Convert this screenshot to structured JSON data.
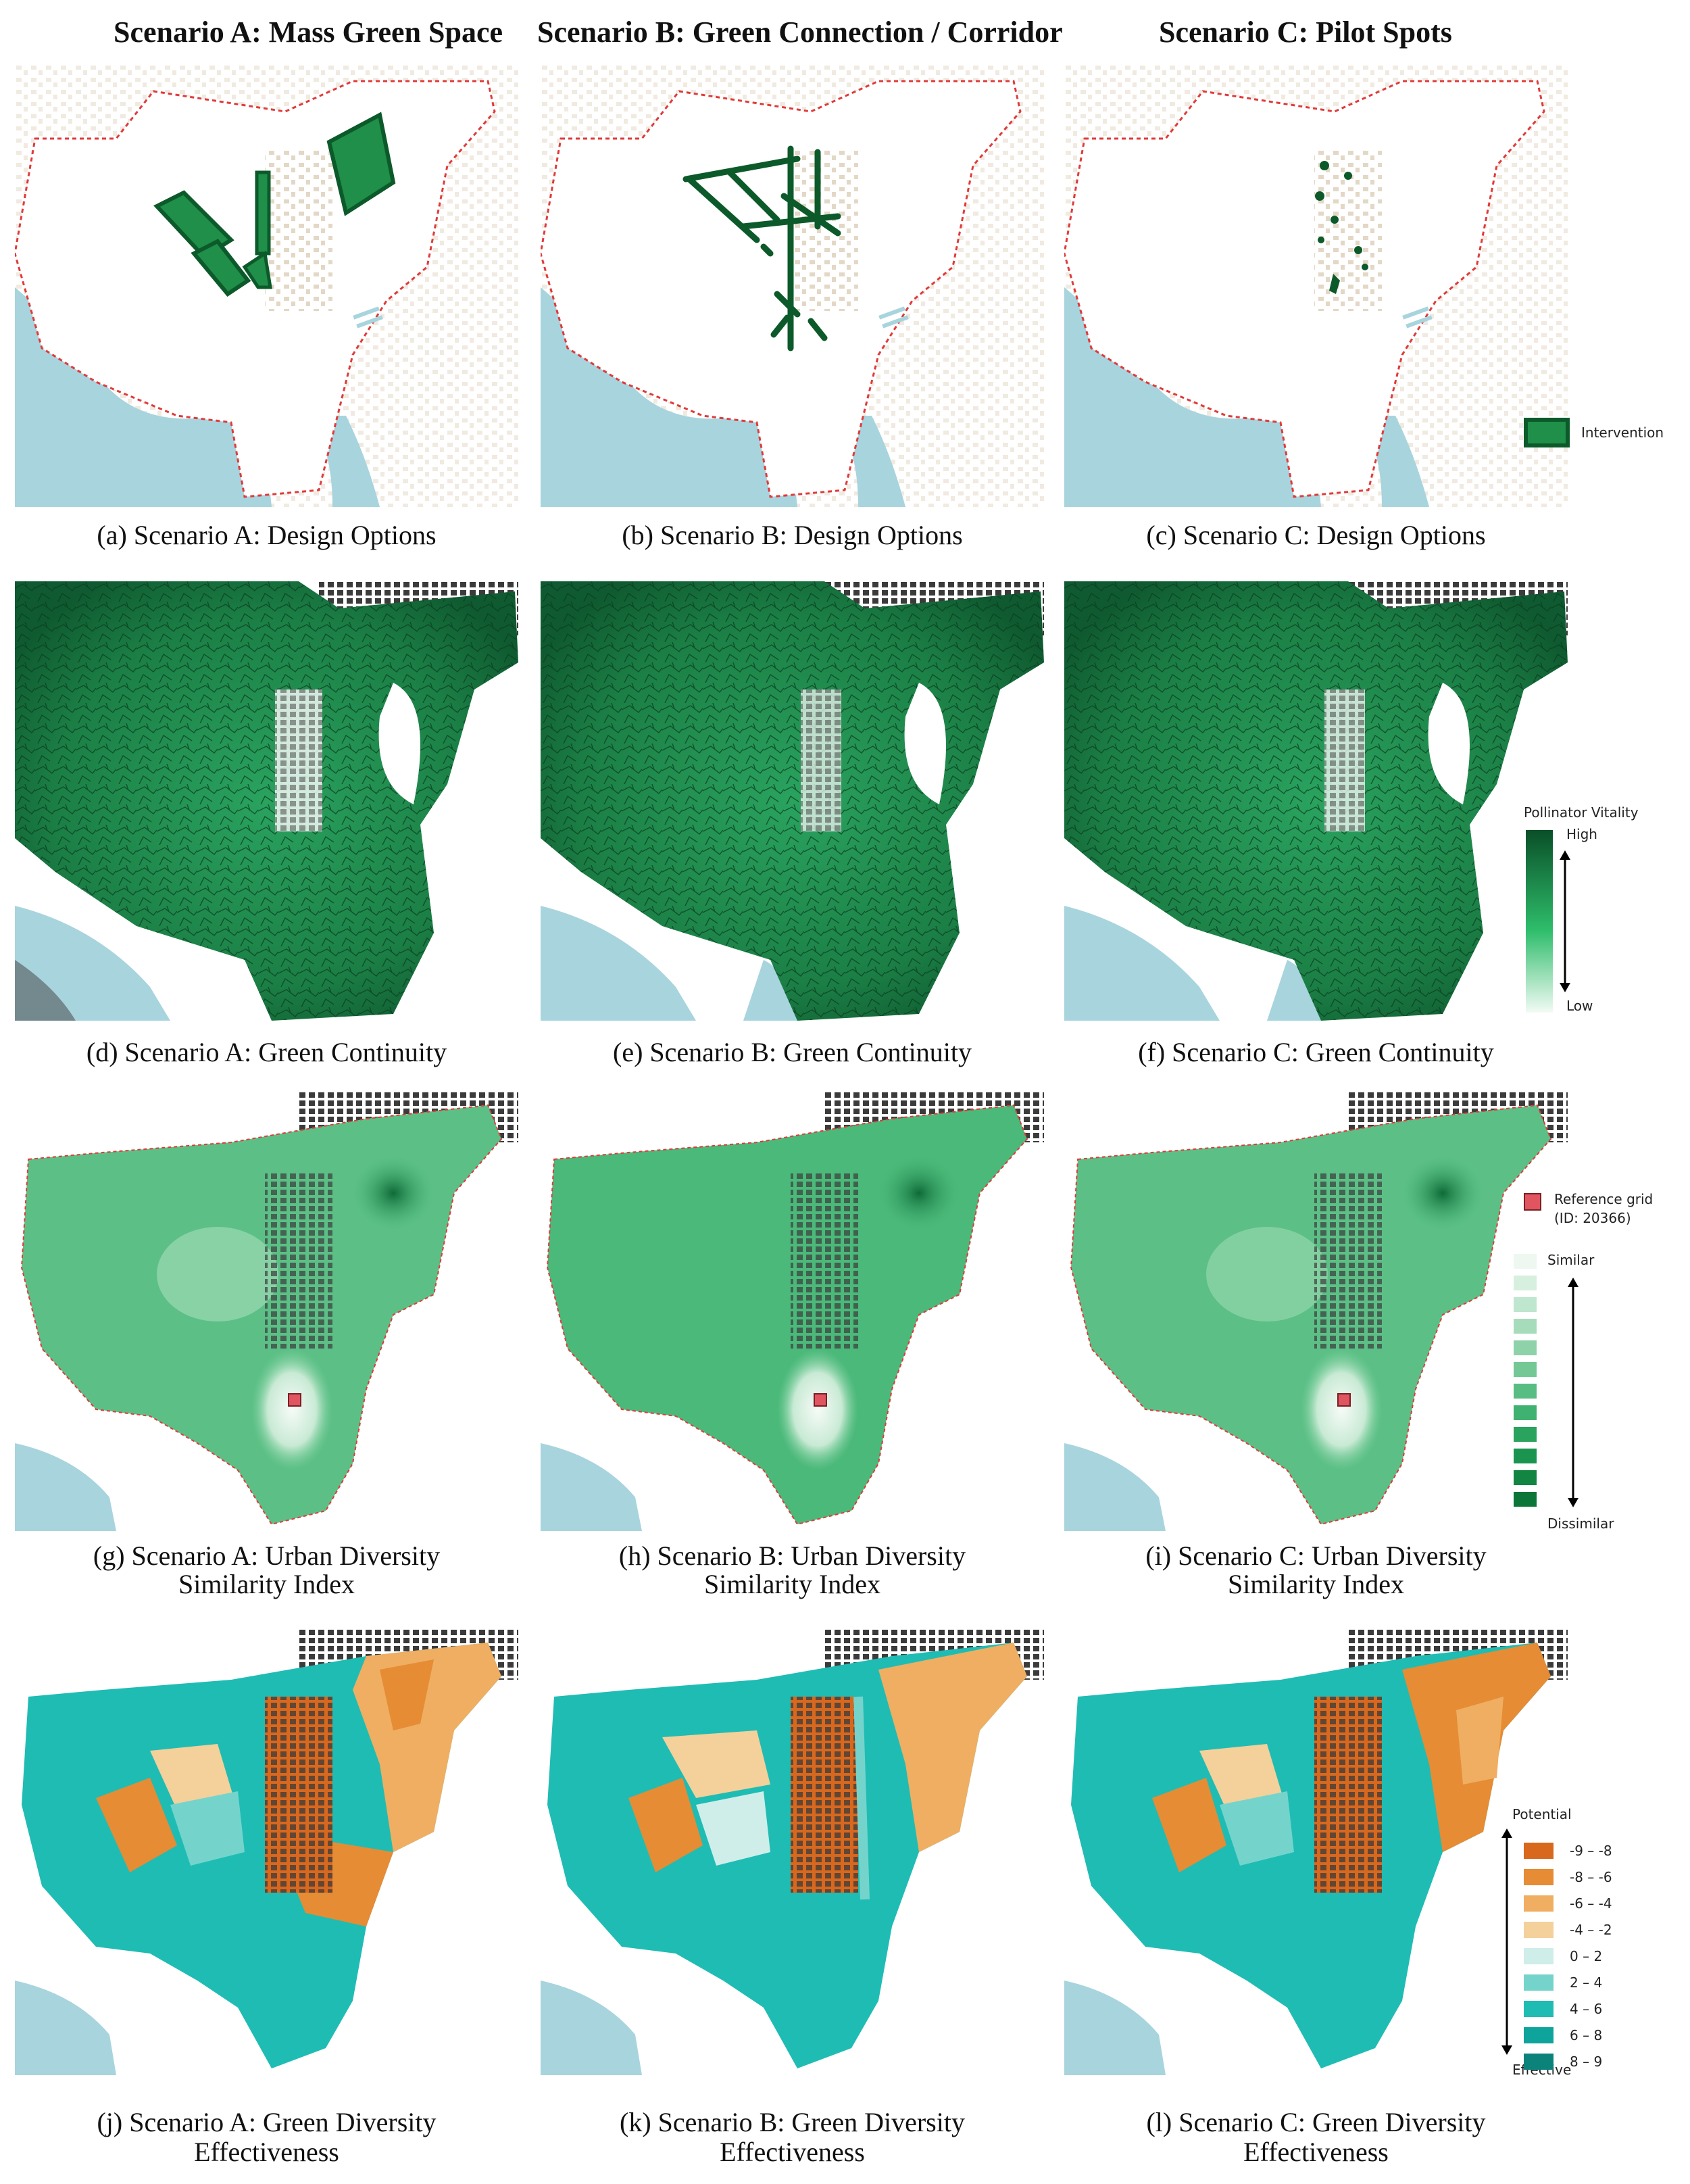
{
  "columns": [
    "Scenario A: Mass Green Space",
    "Scenario B: Green Connection / Corridor",
    "Scenario C: Pilot Spots"
  ],
  "captions": {
    "a": "(a) Scenario A: Design Options",
    "b": "(b) Scenario B: Design Options",
    "c": "(c) Scenario C: Design Options",
    "d": "(d) Scenario A: Green Continuity",
    "e": "(e) Scenario B: Green Continuity",
    "f": "(f) Scenario C: Green Continuity",
    "g1": "(g) Scenario A: Urban Diversity",
    "g2": "Similarity Index",
    "h1": "(h) Scenario B: Urban Diversity",
    "h2": "Similarity Index",
    "i1": "(i) Scenario C: Urban Diversity",
    "i2": "Similarity Index",
    "j1": "(j) Scenario A: Green Diversity",
    "j2": "Effectiveness",
    "k1": "(k) Scenario B: Green Diversity",
    "k2": "Effectiveness",
    "l1": "(l) Scenario C: Green Diversity",
    "l2": "Effectiveness"
  },
  "legends": {
    "intervention": {
      "label": "Intervention",
      "color": "#1f8f4a"
    },
    "vitality": {
      "title": "Pollinator Vitality",
      "high": "High",
      "low": "Low"
    },
    "similarity": {
      "ref_label": "Reference grid",
      "ref_id": "(ID: 20366)",
      "top": "Similar",
      "bottom": "Dissimilar",
      "swatches": [
        "#eef8f1",
        "#d7efdf",
        "#bfe6ce",
        "#a7dcbb",
        "#8ed2a9",
        "#74c896",
        "#58bd83",
        "#3fb170",
        "#2aa35f",
        "#1b944f",
        "#128543",
        "#0c7538"
      ]
    },
    "effectiveness": {
      "top": "Potential",
      "bottom": "Effective",
      "classes": [
        {
          "label": "-9 – -8",
          "color": "#d8681e"
        },
        {
          "label": "-8 – -6",
          "color": "#e58c35"
        },
        {
          "label": "-6 – -4",
          "color": "#efae62"
        },
        {
          "label": "-4 – -2",
          "color": "#f4d09a"
        },
        {
          "label": "0 – 2",
          "color": "#cfeeea"
        },
        {
          "label": "2 – 4",
          "color": "#74d4cc"
        },
        {
          "label": "4 – 6",
          "color": "#1fbcb4"
        },
        {
          "label": "6 – 8",
          "color": "#0fa49b"
        },
        {
          "label": "8 – 9",
          "color": "#0b827a"
        }
      ]
    }
  },
  "colors": {
    "water": "#a8d4de",
    "buildings": "#e3d8c6",
    "boundary": "#e03a3a",
    "intervention": "#1f8f4a",
    "reference_marker": "#e05560"
  }
}
